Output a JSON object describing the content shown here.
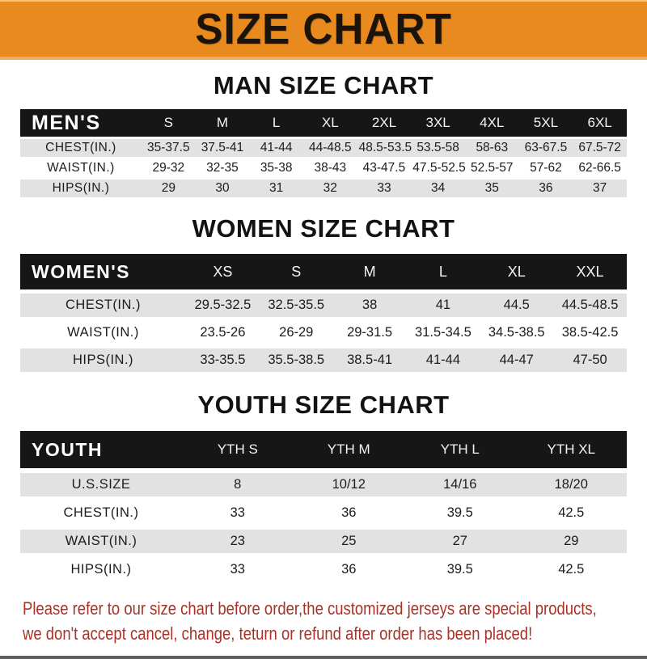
{
  "banner": {
    "title": "SIZE CHART"
  },
  "colors": {
    "banner_bg": "#e98a1f",
    "banner_text": "#1b140d",
    "header_bar_bg": "#161616",
    "header_bar_text": "#f4f4f4",
    "alt_row_bg": "#e2e2e3",
    "body_text": "#1c1c1c",
    "disclaimer_text": "#a93228"
  },
  "sections": [
    {
      "heading": "MAN SIZE CHART",
      "corner_label": "MEN'S",
      "columns": [
        "S",
        "M",
        "L",
        "XL",
        "2XL",
        "3XL",
        "4XL",
        "5XL",
        "6XL"
      ],
      "rows": [
        {
          "label": "CHEST(IN.)",
          "values": [
            "35-37.5",
            "37.5-41",
            "41-44",
            "44-48.5",
            "48.5-53.5",
            "53.5-58",
            "58-63",
            "63-67.5",
            "67.5-72"
          ]
        },
        {
          "label": "WAIST(IN.)",
          "values": [
            "29-32",
            "32-35",
            "35-38",
            "38-43",
            "43-47.5",
            "47.5-52.5",
            "52.5-57",
            "57-62",
            "62-66.5"
          ]
        },
        {
          "label": "HIPS(IN.)",
          "values": [
            "29",
            "30",
            "31",
            "32",
            "33",
            "34",
            "35",
            "36",
            "37"
          ]
        }
      ]
    },
    {
      "heading": "WOMEN SIZE CHART",
      "corner_label": "WOMEN'S",
      "columns": [
        "XS",
        "S",
        "M",
        "L",
        "XL",
        "XXL"
      ],
      "rows": [
        {
          "label": "CHEST(IN.)",
          "values": [
            "29.5-32.5",
            "32.5-35.5",
            "38",
            "41",
            "44.5",
            "44.5-48.5"
          ]
        },
        {
          "label": "WAIST(IN.)",
          "values": [
            "23.5-26",
            "26-29",
            "29-31.5",
            "31.5-34.5",
            "34.5-38.5",
            "38.5-42.5"
          ]
        },
        {
          "label": "HIPS(IN.)",
          "values": [
            "33-35.5",
            "35.5-38.5",
            "38.5-41",
            "41-44",
            "44-47",
            "47-50"
          ]
        }
      ]
    },
    {
      "heading": "YOUTH SIZE CHART",
      "corner_label": "YOUTH",
      "columns": [
        "YTH S",
        "YTH M",
        "YTH L",
        "YTH XL"
      ],
      "rows": [
        {
          "label": "U.S.SIZE",
          "values": [
            "8",
            "10/12",
            "14/16",
            "18/20"
          ]
        },
        {
          "label": "CHEST(IN.)",
          "values": [
            "33",
            "36",
            "39.5",
            "42.5"
          ]
        },
        {
          "label": "WAIST(IN.)",
          "values": [
            "23",
            "25",
            "27",
            "29"
          ]
        },
        {
          "label": "HIPS(IN.)",
          "values": [
            "33",
            "36",
            "39.5",
            "42.5"
          ]
        }
      ]
    }
  ],
  "footer": {
    "line1": "Please refer to our size chart before order,the customized jerseys are special products,",
    "line2": "we don't accept cancel, change, teturn or refund after order has been placed!"
  }
}
